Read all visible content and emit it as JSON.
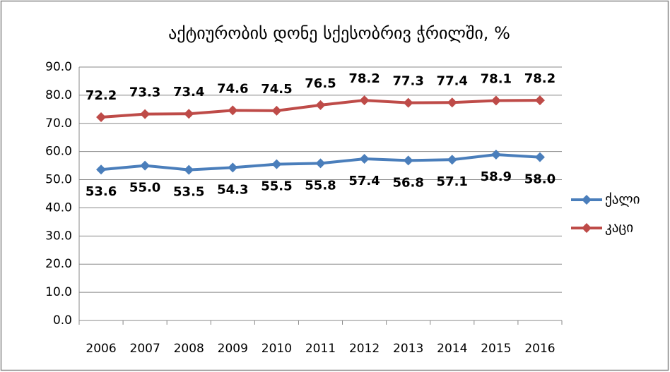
{
  "chart_data": {
    "type": "line",
    "title": "აქტიურობის დონე სქესობრივ ჭრილში, %",
    "categories": [
      "2006",
      "2007",
      "2008",
      "2009",
      "2010",
      "2011",
      "2012",
      "2013",
      "2014",
      "2015",
      "2016"
    ],
    "series": [
      {
        "name": "ქალი",
        "color": "#4a7ebb",
        "values": [
          53.6,
          55.0,
          53.5,
          54.3,
          55.5,
          55.8,
          57.4,
          56.8,
          57.1,
          58.9,
          58.0
        ],
        "value_labels": [
          "53.6",
          "55.0",
          "53.5",
          "54.3",
          "55.5",
          "55.8",
          "57.4",
          "56.8",
          "57.1",
          "58.9",
          "58.0"
        ]
      },
      {
        "name": "კაცი",
        "color": "#be4b48",
        "values": [
          72.2,
          73.3,
          73.4,
          74.6,
          74.5,
          76.5,
          78.2,
          77.3,
          77.4,
          78.1,
          78.2
        ],
        "value_labels": [
          "72.2",
          "73.3",
          "73.4",
          "74.6",
          "74.5",
          "76.5",
          "78.2",
          "77.3",
          "77.4",
          "78.1",
          "78.2"
        ]
      }
    ],
    "ylim": [
      0,
      90
    ],
    "yticks": [
      {
        "value": 0,
        "label": "0.0"
      },
      {
        "value": 10,
        "label": "10.0"
      },
      {
        "value": 20,
        "label": "20.0"
      },
      {
        "value": 30,
        "label": "30.0"
      },
      {
        "value": 40,
        "label": "40.0"
      },
      {
        "value": 50,
        "label": "50.0"
      },
      {
        "value": 60,
        "label": "60.0"
      },
      {
        "value": 70,
        "label": "70.0"
      },
      {
        "value": 80,
        "label": "80.0"
      },
      {
        "value": 90,
        "label": "90.0"
      }
    ],
    "grid": true,
    "legend": "right"
  }
}
